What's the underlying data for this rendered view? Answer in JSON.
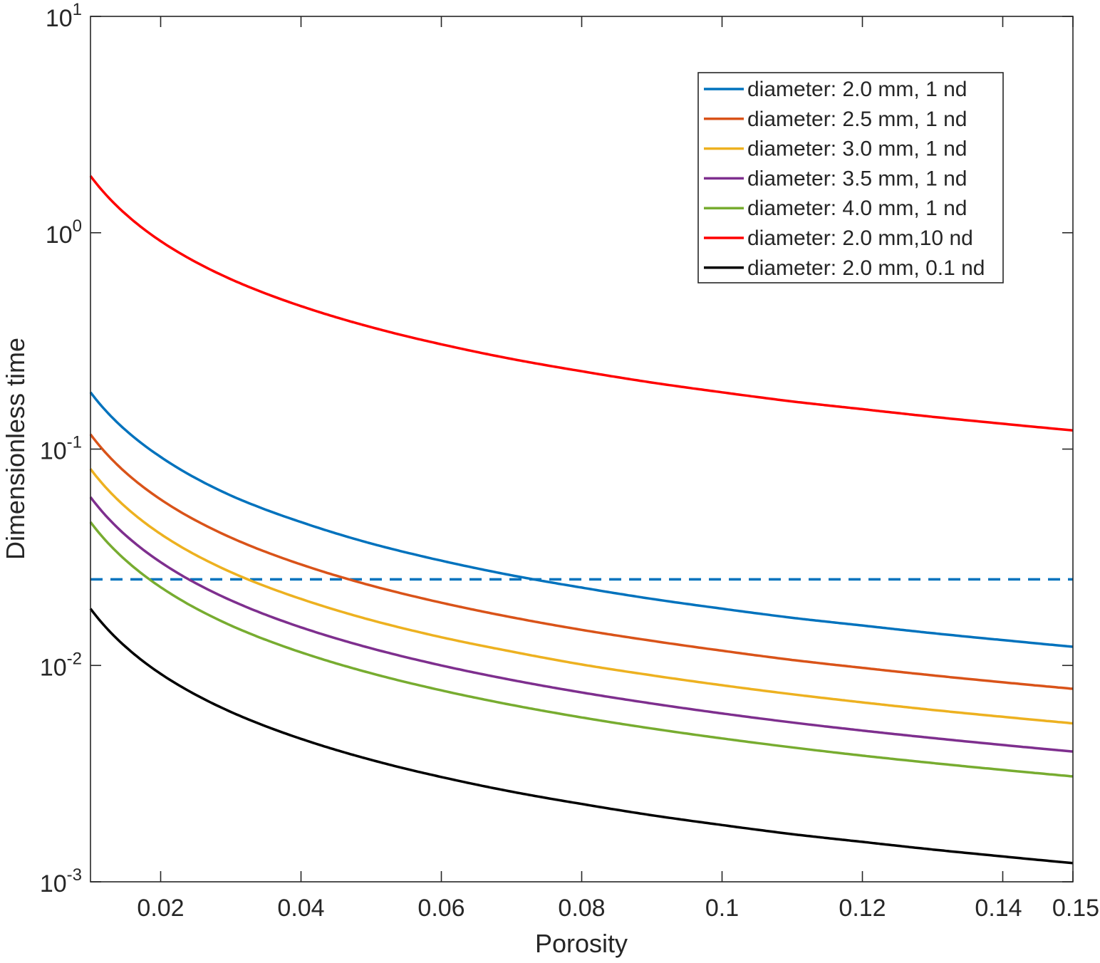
{
  "chart_data": {
    "type": "line",
    "title": "",
    "xlabel": "Porosity",
    "ylabel": "Dimensionless time",
    "xlim": [
      0.01,
      0.15
    ],
    "ylim": [
      0.001,
      10
    ],
    "yscale": "log",
    "grid": false,
    "legend_position": "top-right",
    "x_ticks": [
      0.02,
      0.04,
      0.06,
      0.08,
      0.1,
      0.12,
      0.14,
      0.15
    ],
    "x_tick_labels": [
      "0.02",
      "0.04",
      "0.06",
      "0.08",
      "0.1",
      "0.12",
      "0.14",
      "0.15"
    ],
    "y_ticks": [
      {
        "value": 0.001,
        "base": "10",
        "exp": "-3"
      },
      {
        "value": 0.01,
        "base": "10",
        "exp": "-2"
      },
      {
        "value": 0.1,
        "base": "10",
        "exp": "-1"
      },
      {
        "value": 1,
        "base": "10",
        "exp": "0"
      },
      {
        "value": 10,
        "base": "10",
        "exp": "1"
      }
    ],
    "x": [
      0.01,
      0.02,
      0.03,
      0.04,
      0.05,
      0.06,
      0.07,
      0.08,
      0.09,
      0.1,
      0.11,
      0.12,
      0.13,
      0.14,
      0.15
    ],
    "series": [
      {
        "name": "diameter: 2.0 mm, 1 nd",
        "color": "#0072BD",
        "values": [
          0.183,
          0.092,
          0.061,
          0.046,
          0.0366,
          0.0305,
          0.0261,
          0.0229,
          0.0203,
          0.0183,
          0.0166,
          0.0153,
          0.0141,
          0.0131,
          0.0122
        ]
      },
      {
        "name": "diameter: 2.5 mm, 1 nd",
        "color": "#D95319",
        "values": [
          0.117,
          0.0585,
          0.039,
          0.0293,
          0.0234,
          0.0195,
          0.0167,
          0.0146,
          0.013,
          0.0117,
          0.0106,
          0.00975,
          0.009,
          0.00836,
          0.0078
        ]
      },
      {
        "name": "diameter: 3.0 mm, 1 nd",
        "color": "#EDB120",
        "values": [
          0.081,
          0.0405,
          0.027,
          0.0203,
          0.0162,
          0.0135,
          0.0116,
          0.0101,
          0.009,
          0.0081,
          0.00736,
          0.00675,
          0.00623,
          0.00579,
          0.0054
        ]
      },
      {
        "name": "diameter: 3.5 mm, 1 nd",
        "color": "#7E2F8E",
        "values": [
          0.06,
          0.03,
          0.02,
          0.015,
          0.012,
          0.01,
          0.00857,
          0.0075,
          0.00667,
          0.006,
          0.00545,
          0.005,
          0.00462,
          0.00429,
          0.004
        ]
      },
      {
        "name": "diameter: 4.0 mm, 1 nd",
        "color": "#77AC30",
        "values": [
          0.046,
          0.023,
          0.0153,
          0.0115,
          0.0092,
          0.00767,
          0.00657,
          0.00575,
          0.00511,
          0.0046,
          0.00418,
          0.00383,
          0.00354,
          0.00329,
          0.00307
        ]
      },
      {
        "name": "diameter: 2.0 mm,10 nd",
        "color": "#FF0000",
        "values": [
          1.83,
          0.915,
          0.61,
          0.458,
          0.366,
          0.305,
          0.261,
          0.229,
          0.203,
          0.183,
          0.166,
          0.153,
          0.141,
          0.131,
          0.122
        ]
      },
      {
        "name": "diameter: 2.0 mm, 0.1 nd",
        "color": "#000000",
        "values": [
          0.0183,
          0.00915,
          0.0061,
          0.00458,
          0.00366,
          0.00305,
          0.00261,
          0.00229,
          0.00203,
          0.00183,
          0.00166,
          0.00153,
          0.00141,
          0.00131,
          0.00122
        ]
      }
    ],
    "reference_line": {
      "y": 0.025,
      "color": "#0072BD",
      "style": "dashed"
    }
  }
}
